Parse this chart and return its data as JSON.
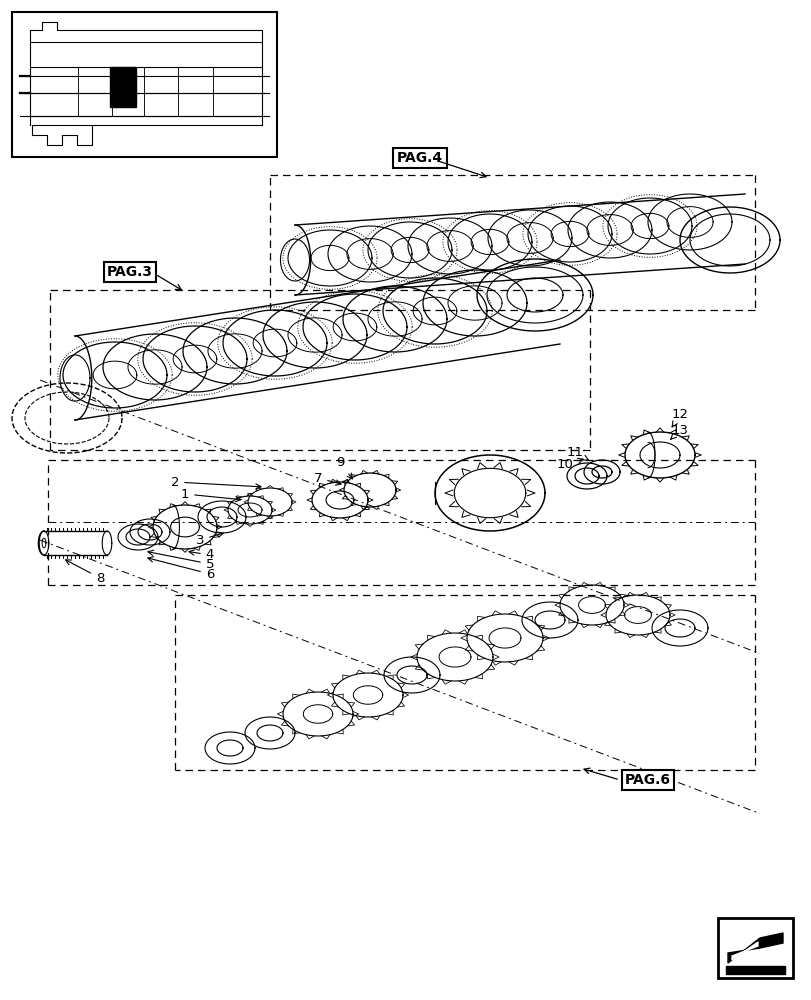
{
  "bg_color": "#ffffff",
  "line_color": "#000000",
  "figsize": [
    8.12,
    10.0
  ],
  "dpi": 100,
  "pag3_label": "PAG.3",
  "pag4_label": "PAG.4",
  "pag6_label": "PAG.6",
  "part_labels": [
    "1",
    "2",
    "3",
    "4",
    "5",
    "6",
    "7",
    "8",
    "9",
    "10",
    "11",
    "12",
    "13"
  ]
}
